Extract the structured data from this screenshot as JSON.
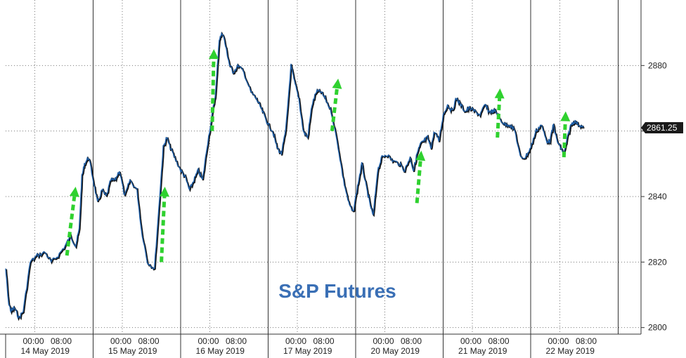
{
  "chart_data": {
    "type": "line",
    "title": "S&P Futures",
    "xlabel": "",
    "ylabel": "",
    "ylim": [
      2798,
      2900
    ],
    "y_ticks": [
      2800,
      2820,
      2840,
      2860,
      2880
    ],
    "y_tick_labels": [
      "2800",
      "2820",
      "2840",
      "",
      "2880"
    ],
    "last_value_label": "2861.25",
    "grid": true,
    "colors": {
      "line": "#1f5fa8",
      "shadow": "#111111",
      "arrow": "#2fd12f",
      "title": "#3a6fb5",
      "last_badge": "#1a1a1a"
    },
    "days": [
      "14 May 2019",
      "15 May 2019",
      "16 May 2019",
      "17 May 2019",
      "20 May 2019",
      "21 May 2019",
      "22 May 2019"
    ],
    "time_labels": [
      "00:00",
      "08:00"
    ],
    "series": [
      {
        "x": [
          0.0,
          0.03,
          0.06,
          0.1,
          0.15,
          0.2,
          0.28,
          0.36,
          0.45,
          0.52,
          0.6,
          0.68,
          0.74,
          0.8,
          0.84,
          0.87,
          0.9,
          0.95,
          1.0,
          1.05,
          1.1,
          1.15,
          1.2,
          1.25,
          1.3,
          1.36,
          1.42,
          1.5,
          1.55,
          1.62,
          1.7,
          1.76,
          1.8,
          1.84,
          1.88,
          1.93,
          2.0,
          2.05,
          2.1,
          2.15,
          2.2,
          2.25,
          2.3,
          2.36,
          2.4,
          2.44,
          2.48,
          2.52,
          2.56,
          2.6,
          2.66,
          2.72,
          2.8,
          2.86,
          2.9,
          2.95,
          3.0,
          3.05,
          3.1,
          3.15,
          3.2,
          3.26,
          3.3,
          3.35,
          3.4,
          3.45,
          3.5,
          3.55,
          3.6,
          3.65,
          3.72,
          3.8,
          3.86,
          3.92,
          3.97,
          4.02,
          4.07,
          4.12,
          4.16,
          4.2,
          4.25,
          4.3,
          4.35,
          4.42,
          4.5,
          4.56,
          4.62,
          4.66,
          4.7,
          4.74,
          4.78,
          4.82,
          4.86,
          4.9,
          4.95,
          5.0,
          5.05,
          5.1,
          5.15,
          5.2,
          5.25,
          5.3,
          5.36,
          5.42,
          5.48,
          5.52,
          5.56,
          5.6,
          5.64,
          5.7,
          5.76,
          5.82,
          5.88,
          5.94,
          6.0,
          6.06,
          6.12,
          6.18,
          6.22,
          6.26,
          6.3,
          6.34,
          6.38,
          6.42,
          6.46,
          6.5,
          6.55,
          6.6
        ],
        "values": [
          2818,
          2808,
          2805,
          2806,
          2803,
          2805,
          2820,
          2822,
          2823,
          2820,
          2822,
          2825,
          2828,
          2825,
          2830,
          2846,
          2850,
          2852,
          2845,
          2838,
          2842,
          2840,
          2845,
          2845,
          2848,
          2840,
          2845,
          2842,
          2830,
          2820,
          2818,
          2840,
          2855,
          2858,
          2855,
          2852,
          2848,
          2846,
          2842,
          2845,
          2848,
          2845,
          2855,
          2865,
          2872,
          2888,
          2890,
          2885,
          2880,
          2878,
          2880,
          2878,
          2872,
          2870,
          2868,
          2865,
          2862,
          2860,
          2855,
          2853,
          2860,
          2880,
          2875,
          2870,
          2860,
          2858,
          2868,
          2872,
          2872,
          2870,
          2866,
          2855,
          2845,
          2838,
          2835,
          2843,
          2850,
          2843,
          2838,
          2834,
          2848,
          2852,
          2853,
          2851,
          2850,
          2848,
          2852,
          2848,
          2853,
          2856,
          2857,
          2858,
          2855,
          2860,
          2857,
          2865,
          2868,
          2866,
          2870,
          2868,
          2866,
          2867,
          2866,
          2865,
          2868,
          2866,
          2866,
          2866,
          2864,
          2862,
          2862,
          2860,
          2852,
          2852,
          2855,
          2860,
          2862,
          2857,
          2857,
          2862,
          2857,
          2855,
          2853,
          2858,
          2862,
          2863,
          2862,
          2861
        ]
      }
    ],
    "arrows": [
      {
        "x0": 0.7,
        "y0": 2822,
        "x1": 0.8,
        "y1": 2843
      },
      {
        "x0": 1.78,
        "y0": 2820,
        "x1": 1.82,
        "y1": 2843
      },
      {
        "x0": 2.36,
        "y0": 2860,
        "x1": 2.38,
        "y1": 2885
      },
      {
        "x0": 3.73,
        "y0": 2860,
        "x1": 3.8,
        "y1": 2876
      },
      {
        "x0": 4.7,
        "y0": 2838,
        "x1": 4.75,
        "y1": 2854
      },
      {
        "x0": 5.62,
        "y0": 2858,
        "x1": 5.65,
        "y1": 2873
      },
      {
        "x0": 6.38,
        "y0": 2852,
        "x1": 6.4,
        "y1": 2866
      }
    ]
  }
}
